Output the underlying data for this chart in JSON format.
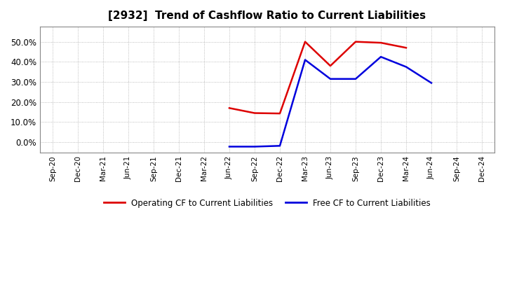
{
  "title": "[2932]  Trend of Cashflow Ratio to Current Liabilities",
  "title_fontsize": 11,
  "operating_cf": {
    "x_indices": [
      7,
      8,
      9,
      10,
      11,
      12,
      13,
      14,
      15
    ],
    "y": [
      0.17,
      0.145,
      0.143,
      0.5,
      0.38,
      0.5,
      0.495,
      0.47,
      null
    ]
  },
  "free_cf": {
    "x_indices": [
      7,
      8,
      9,
      10,
      11,
      12,
      13,
      14,
      15
    ],
    "y": [
      -0.022,
      -0.022,
      -0.018,
      0.41,
      0.315,
      0.315,
      0.425,
      0.375,
      0.295
    ]
  },
  "operating_color": "#dd0000",
  "free_color": "#0000dd",
  "background_color": "#ffffff",
  "plot_bg_color": "#ffffff",
  "ylim": [
    -0.05,
    0.575
  ],
  "yticks": [
    0.0,
    0.1,
    0.2,
    0.3,
    0.4,
    0.5
  ],
  "xtick_labels": [
    "Sep-20",
    "Dec-20",
    "Mar-21",
    "Jun-21",
    "Sep-21",
    "Dec-21",
    "Mar-22",
    "Jun-22",
    "Sep-22",
    "Dec-22",
    "Mar-23",
    "Jun-23",
    "Sep-23",
    "Dec-23",
    "Mar-24",
    "Jun-24",
    "Sep-24",
    "Dec-24"
  ],
  "legend_operating": "Operating CF to Current Liabilities",
  "legend_free": "Free CF to Current Liabilities",
  "line_width": 1.8,
  "grid_color": "#aaaaaa",
  "grid_linewidth": 0.6
}
